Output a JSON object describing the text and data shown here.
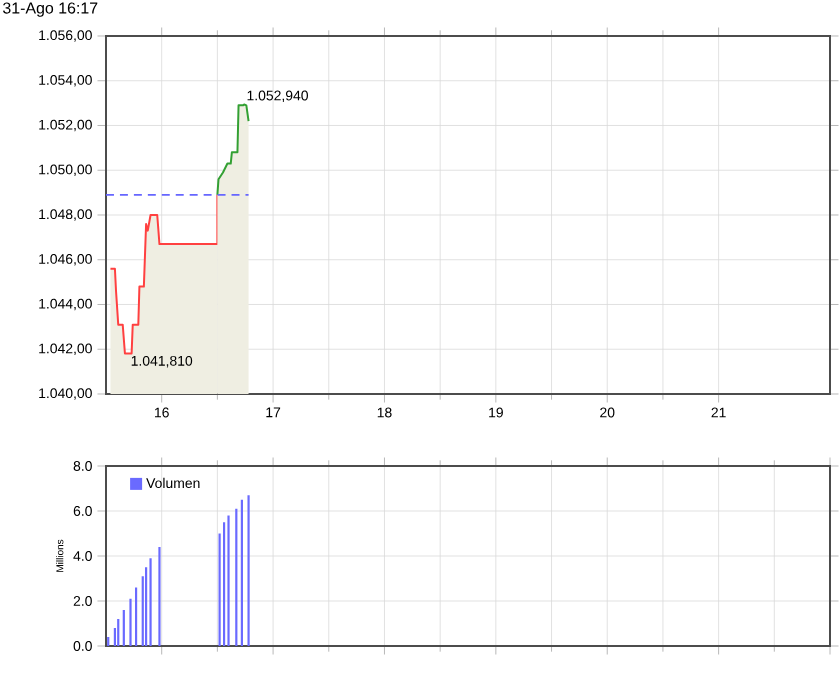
{
  "chart_data": [
    {
      "type": "line",
      "xlim": [
        15.5,
        22
      ],
      "xticks": [
        16,
        17,
        18,
        19,
        20,
        21
      ],
      "ylim": [
        1040,
        1056
      ],
      "yticks": [
        {
          "value": 1040,
          "label": "1.040,00"
        },
        {
          "value": 1042,
          "label": "1.042,00"
        },
        {
          "value": 1044,
          "label": "1.044,00"
        },
        {
          "value": 1046,
          "label": "1.046,00"
        },
        {
          "value": 1048,
          "label": "1.048,00"
        },
        {
          "value": 1050,
          "label": "1.050,00"
        },
        {
          "value": 1052,
          "label": "1.052,00"
        },
        {
          "value": 1054,
          "label": "1.054,00"
        },
        {
          "value": 1056,
          "label": "1.056,00"
        }
      ],
      "grid": true,
      "series": [
        {
          "type": "area",
          "color": "#ff4040",
          "x": [
            15.54,
            15.58,
            15.59,
            15.61,
            15.65,
            15.67,
            15.73,
            15.74,
            15.79,
            15.8,
            15.84,
            15.86,
            15.875,
            15.9,
            15.96,
            15.98,
            16.5,
            16.5
          ],
          "values": [
            1045.6,
            1045.6,
            1044.6,
            1043.1,
            1043.1,
            1041.81,
            1041.81,
            1043.1,
            1043.1,
            1044.8,
            1044.8,
            1047.6,
            1047.3,
            1048.0,
            1048.0,
            1046.7,
            1046.7,
            1048.9
          ]
        },
        {
          "type": "area",
          "color": "#33a033",
          "x": [
            16.5,
            16.51,
            16.55,
            16.59,
            16.62,
            16.63,
            16.68,
            16.69,
            16.73,
            16.74,
            16.76,
            16.78
          ],
          "values": [
            1048.9,
            1049.6,
            1049.9,
            1050.3,
            1050.3,
            1050.8,
            1050.8,
            1052.9,
            1052.9,
            1052.94,
            1052.9,
            1052.2
          ]
        }
      ],
      "ref_lines": [
        {
          "axis": "y",
          "value": 1048.9,
          "color": "#6666ff",
          "line_style": "dashed"
        }
      ],
      "annotations": [
        "31-Ago 16:17",
        {
          "text": "1.052,940",
          "x": 16.74,
          "y": 1052.94
        },
        {
          "text": "1.041,810",
          "x": 15.7,
          "y": 1041.81
        }
      ]
    },
    {
      "type": "bar",
      "xlim": [
        15.5,
        22
      ],
      "ylim": [
        0,
        8
      ],
      "yticks": [
        {
          "value": 0,
          "label": "0.0"
        },
        {
          "value": 2,
          "label": "2.0"
        },
        {
          "value": 4,
          "label": "4.0"
        },
        {
          "value": 6,
          "label": "6.0"
        },
        {
          "value": 8,
          "label": "8.0"
        }
      ],
      "ylabel": "Millions",
      "grid": true,
      "tick_labels": "y",
      "legend": "top left",
      "series": [
        {
          "name": "Volumen",
          "color": "#6a6aff",
          "x": [
            15.52,
            15.58,
            15.61,
            15.66,
            15.72,
            15.77,
            15.83,
            15.86,
            15.9,
            15.98,
            16.52,
            16.56,
            16.6,
            16.67,
            16.72,
            16.78
          ],
          "values": [
            0.4,
            0.8,
            1.2,
            1.6,
            2.1,
            2.6,
            3.1,
            3.5,
            3.9,
            4.4,
            5.0,
            5.5,
            5.8,
            6.1,
            6.5,
            6.7
          ]
        }
      ]
    }
  ]
}
